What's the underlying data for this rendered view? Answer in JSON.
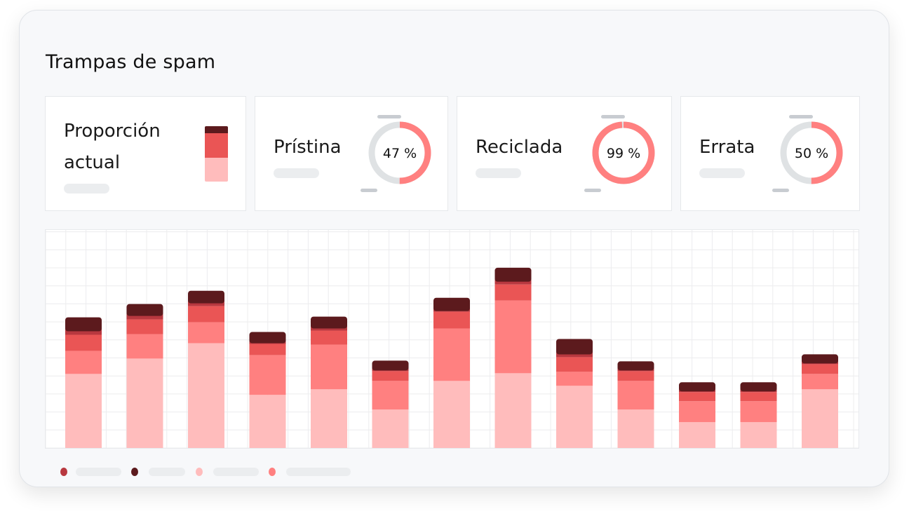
{
  "title": "Trampas de spam",
  "colors": {
    "darkest": "#5c1a1d",
    "dark": "#b8383f",
    "red": "#ea5555",
    "salmon": "#ff8080",
    "pink": "#ffbcbc",
    "track": "#dfe2e4",
    "stub": "#c8ccd1"
  },
  "cards": {
    "proportion": {
      "label_line1": "Proporción",
      "label_line2": "actual"
    },
    "pristina": {
      "label": "Prístina",
      "value_text": "47 %",
      "value": 0.47
    },
    "reciclada": {
      "label": "Reciclada",
      "value_text": "99 %",
      "value": 0.99
    },
    "errata": {
      "label": "Errata",
      "value_text": "50 %",
      "value": 0.5
    }
  },
  "legend": [
    {
      "color_key": "dark",
      "icon": "legend-dot"
    },
    {
      "color_key": "darkest",
      "icon": "legend-dot"
    },
    {
      "color_key": "pink",
      "icon": "legend-dot"
    },
    {
      "color_key": "salmon",
      "icon": "legend-dot"
    }
  ],
  "chart_data": {
    "type": "bar",
    "stacked": true,
    "grid": true,
    "categories": [
      "",
      "",
      "",
      "",
      "",
      "",
      "",
      "",
      "",
      "",
      "",
      "",
      ""
    ],
    "series": [
      {
        "color_key": "pink",
        "values": [
          106,
          128,
          150,
          76,
          84,
          55,
          96,
          107,
          89,
          55,
          37,
          37,
          84
        ]
      },
      {
        "color_key": "salmon",
        "values": [
          33,
          35,
          30,
          57,
          64,
          41,
          75,
          104,
          20,
          41,
          30,
          30,
          22
        ]
      },
      {
        "color_key": "red",
        "values": [
          23,
          21,
          23,
          16,
          20,
          14,
          24,
          23,
          21,
          14,
          13,
          13,
          14
        ]
      },
      {
        "color_key": "dark",
        "values": [
          9,
          9,
          8,
          5,
          7,
          5,
          5,
          8,
          8,
          5,
          5,
          5,
          5
        ]
      },
      {
        "color_key": "darkest",
        "values": [
          16,
          13,
          14,
          12,
          13,
          10,
          15,
          16,
          18,
          9,
          9,
          9,
          9
        ]
      }
    ],
    "ylim": [
      0,
      312
    ]
  }
}
